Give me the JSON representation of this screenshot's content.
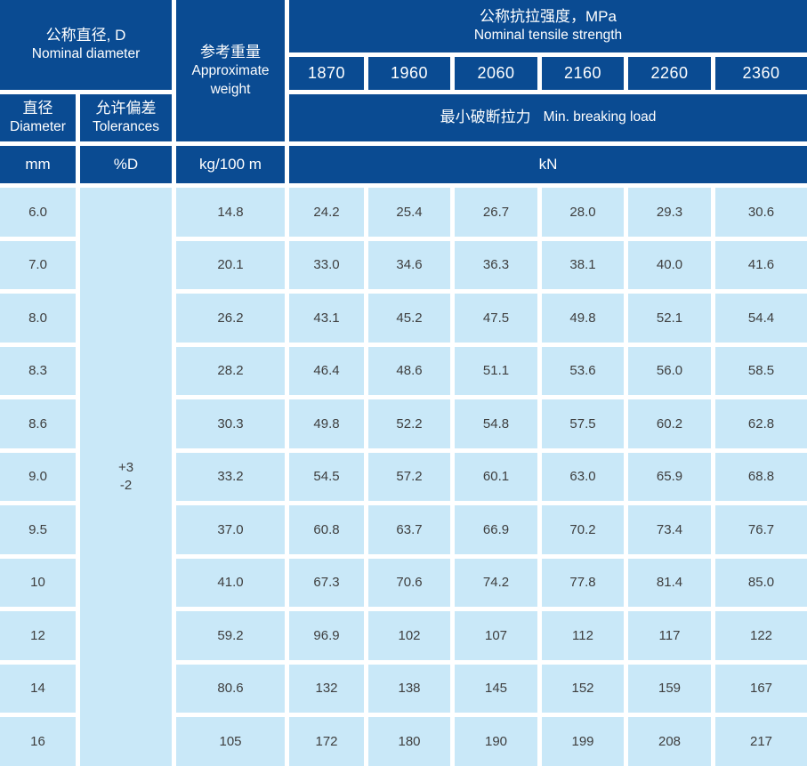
{
  "colors": {
    "header_bg": "#0a4b92",
    "cell_bg": "#c9e8f8",
    "cell_text": "#3e3e3e",
    "header_text": "#ffffff",
    "grid_line": "#ffffff"
  },
  "table": {
    "header": {
      "nominal_diameter": {
        "zh": "公称直径, D",
        "en": "Nominal diameter"
      },
      "approximate_weight": {
        "zh": "参考重量",
        "en": "Approximate weight"
      },
      "tensile_strength": {
        "zh": "公称抗拉强度，MPa",
        "en": "Nominal tensile strength"
      },
      "strength_grades": [
        "1870",
        "1960",
        "2060",
        "2160",
        "2260",
        "2360"
      ],
      "diameter": {
        "zh": "直径",
        "en": "Diameter"
      },
      "tolerances": {
        "zh": "允许偏差",
        "en": "Tolerances"
      },
      "breaking_load": {
        "zh": "最小破断拉力",
        "en": "Min. breaking load"
      },
      "units": {
        "diameter": "mm",
        "tolerance": "%D",
        "weight": "kg/100 m",
        "load": "kN"
      }
    },
    "tolerance_value": {
      "plus": "+3",
      "minus": "-2"
    },
    "rows": [
      {
        "diameter": "6.0",
        "weight": "14.8",
        "loads": [
          "24.2",
          "25.4",
          "26.7",
          "28.0",
          "29.3",
          "30.6"
        ]
      },
      {
        "diameter": "7.0",
        "weight": "20.1",
        "loads": [
          "33.0",
          "34.6",
          "36.3",
          "38.1",
          "40.0",
          "41.6"
        ]
      },
      {
        "diameter": "8.0",
        "weight": "26.2",
        "loads": [
          "43.1",
          "45.2",
          "47.5",
          "49.8",
          "52.1",
          "54.4"
        ]
      },
      {
        "diameter": "8.3",
        "weight": "28.2",
        "loads": [
          "46.4",
          "48.6",
          "51.1",
          "53.6",
          "56.0",
          "58.5"
        ]
      },
      {
        "diameter": "8.6",
        "weight": "30.3",
        "loads": [
          "49.8",
          "52.2",
          "54.8",
          "57.5",
          "60.2",
          "62.8"
        ]
      },
      {
        "diameter": "9.0",
        "weight": "33.2",
        "loads": [
          "54.5",
          "57.2",
          "60.1",
          "63.0",
          "65.9",
          "68.8"
        ]
      },
      {
        "diameter": "9.5",
        "weight": "37.0",
        "loads": [
          "60.8",
          "63.7",
          "66.9",
          "70.2",
          "73.4",
          "76.7"
        ]
      },
      {
        "diameter": "10",
        "weight": "41.0",
        "loads": [
          "67.3",
          "70.6",
          "74.2",
          "77.8",
          "81.4",
          "85.0"
        ]
      },
      {
        "diameter": "12",
        "weight": "59.2",
        "loads": [
          "96.9",
          "102",
          "107",
          "112",
          "117",
          "122"
        ]
      },
      {
        "diameter": "14",
        "weight": "80.6",
        "loads": [
          "132",
          "138",
          "145",
          "152",
          "159",
          "167"
        ]
      },
      {
        "diameter": "16",
        "weight": "105",
        "loads": [
          "172",
          "180",
          "190",
          "199",
          "208",
          "217"
        ]
      }
    ]
  }
}
